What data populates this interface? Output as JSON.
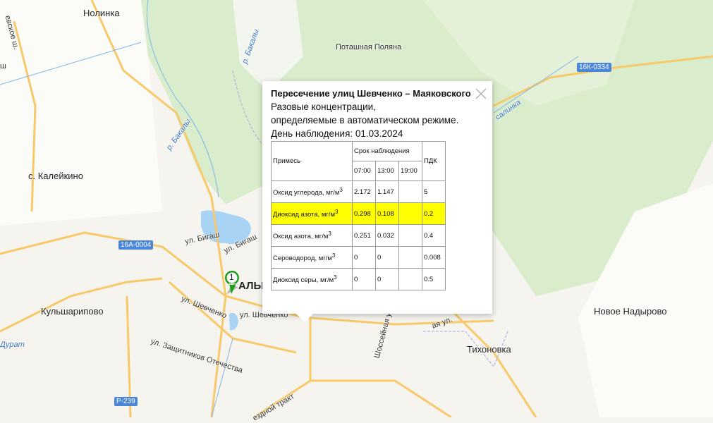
{
  "map": {
    "places": {
      "nolinka": "Нолинка",
      "potashnaya": "Поташная Поляна",
      "kaleikino": "с. Калейкино",
      "kulsharipovo": "Кульшарипово",
      "novoe_nadyrovo": "Новое Надырово",
      "tikhonovka": "Тихоновка",
      "almetyevsk": "АЛЬМ"
    },
    "streets": {
      "bigash1": "ул. Бигаш",
      "bigash2": "ул. Бигаш",
      "shevchenko1": "ул. Шевченко",
      "shevchenko2": "ул. Шевченко",
      "zashchitnikov": "ул. Защитников Отечества",
      "trakt": "ездной тракт",
      "shosseynaya": "Шоссейная у",
      "evskoe": "евское ш.",
      "sh": "ш",
      "ul_right": "ая ул."
    },
    "rivers": {
      "bakaly1": "р. Бакалы",
      "bakaly2": "р. Бакалы",
      "zurat": "Дурат",
      "salinka": "салинка"
    },
    "roads": {
      "r1": "16К-0334",
      "r2": "16А-0004",
      "r3": "Р-239"
    },
    "marker_label": "1",
    "marker_color": "#1e9e1e"
  },
  "popup": {
    "title": "Пересечение улиц Шевченко – Маяковского",
    "line1": "Разовые концентрации,",
    "line2": "определяемые в автоматическом режиме.",
    "date_line": "День наблюдения: 01.03.2024",
    "table": {
      "col_substance": "Примесь",
      "col_period": "Срок наблюдения",
      "col_pdk": "ПДК",
      "times": [
        "07:00",
        "13:00",
        "19:00"
      ],
      "rows": [
        {
          "name": "Оксид углерода, мг/м",
          "sup": "3",
          "v": [
            "2.172",
            "1.147",
            ""
          ],
          "pdk": "5",
          "highlight": false
        },
        {
          "name": "Диоксид азота, мг/м",
          "sup": "3",
          "v": [
            "0.298",
            "0.108",
            ""
          ],
          "pdk": "0.2",
          "highlight": true
        },
        {
          "name": "Оксид азота, мг/м",
          "sup": "3",
          "v": [
            "0.251",
            "0.032",
            ""
          ],
          "pdk": "0.4",
          "highlight": false
        },
        {
          "name": "Сероводород, мг/м",
          "sup": "3",
          "v": [
            "0",
            "0",
            ""
          ],
          "pdk": "0.008",
          "highlight": false
        },
        {
          "name": "Диоксид серы, мг/м",
          "sup": "3",
          "v": [
            "0",
            "0",
            ""
          ],
          "pdk": "0.5",
          "highlight": false
        }
      ]
    },
    "highlight_color": "#ffff00"
  }
}
